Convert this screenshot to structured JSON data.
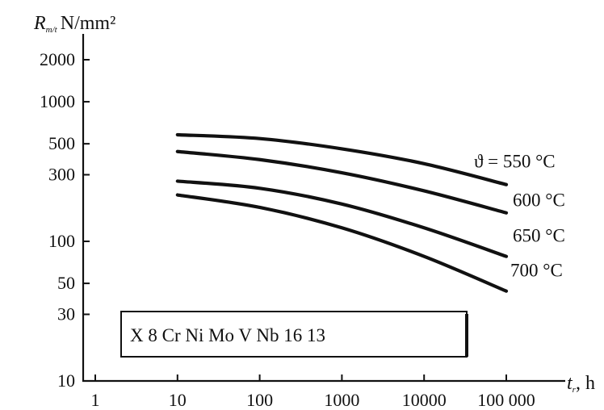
{
  "chart_data": {
    "type": "line",
    "y_scale": "log",
    "x_scale": "log",
    "xlim": [
      1,
      100000
    ],
    "ylim": [
      10,
      2000
    ],
    "y_axis_label": {
      "symbol": "R",
      "subscript": "m/t",
      "unit": "N/mm²"
    },
    "x_axis_label": {
      "symbol": "t",
      "subscript": "r",
      "unit": ", h"
    },
    "x_ticks": [
      "1",
      "10",
      "100",
      "1000",
      "10000",
      "100 000"
    ],
    "x_tick_values": [
      1,
      10,
      100,
      1000,
      10000,
      100000
    ],
    "y_ticks": [
      "2000",
      "1000",
      "500",
      "300",
      "100",
      "50",
      "30",
      "10"
    ],
    "y_tick_values": [
      2000,
      1000,
      500,
      300,
      100,
      50,
      30,
      10
    ],
    "material_box": "X 8 Cr Ni Mo V Nb 16 13",
    "series": [
      {
        "name": "ϑ = 550 °C",
        "x": [
          10,
          100,
          1000,
          10000,
          100000
        ],
        "y": [
          580,
          545,
          460,
          360,
          255
        ]
      },
      {
        "name": "600 °C",
        "x": [
          10,
          100,
          1000,
          10000,
          100000
        ],
        "y": [
          440,
          385,
          310,
          230,
          160
        ]
      },
      {
        "name": "650 °C",
        "x": [
          10,
          100,
          1000,
          10000,
          100000
        ],
        "y": [
          270,
          240,
          185,
          125,
          78
        ]
      },
      {
        "name": "700 °C",
        "x": [
          10,
          100,
          1000,
          10000,
          100000
        ],
        "y": [
          215,
          175,
          125,
          78,
          44
        ]
      }
    ]
  }
}
